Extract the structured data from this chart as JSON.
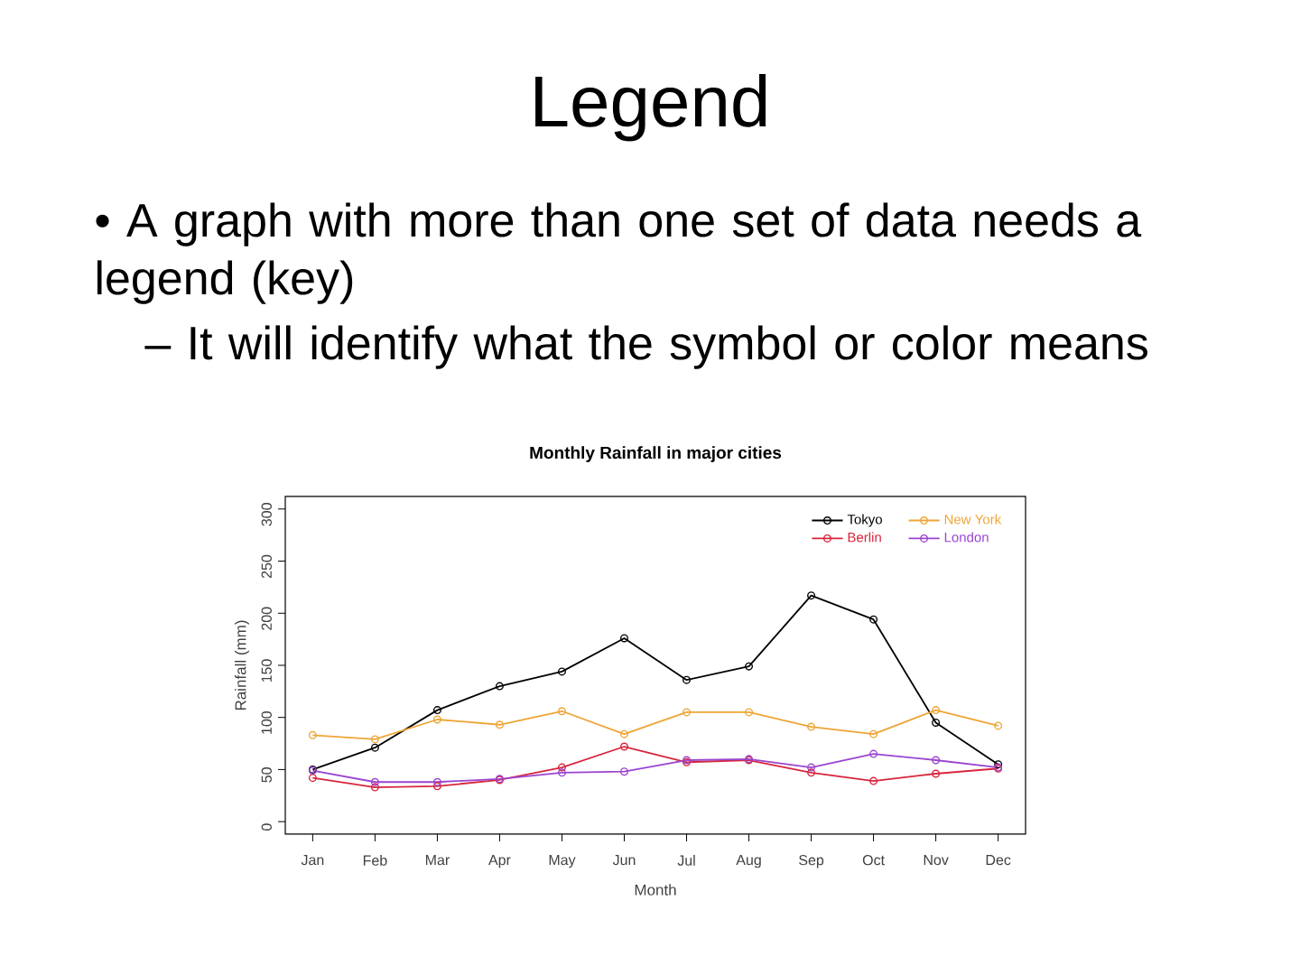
{
  "chart_data": {
    "type": "line",
    "title": "Monthly Rainfall in major cities",
    "xlabel": "Month",
    "ylabel": "Rainfall (mm)",
    "annotations": [
      "Legend",
      "• A graph with more than one set of data needs a legend (key)",
      "– It will identify what the symbol or color means"
    ],
    "categories": [
      "Jan",
      "Feb",
      "Mar",
      "Apr",
      "May",
      "Jun",
      "Jul",
      "Aug",
      "Sep",
      "Oct",
      "Nov",
      "Dec"
    ],
    "series": [
      {
        "name": "Tokyo",
        "color": "#000000",
        "values": [
          50,
          71,
          107,
          130,
          144,
          176,
          136,
          149,
          217,
          194,
          95,
          55
        ]
      },
      {
        "name": "New York",
        "color": "#eea536",
        "values": [
          83,
          79,
          98,
          93,
          106,
          84,
          105,
          105,
          91,
          84,
          107,
          92
        ]
      },
      {
        "name": "Berlin",
        "color": "#d7263d",
        "values": [
          42,
          33,
          34,
          40,
          52,
          72,
          57,
          59,
          47,
          39,
          46,
          51
        ]
      },
      {
        "name": "London",
        "color": "#9b45d0",
        "values": [
          49,
          38,
          38,
          41,
          47,
          48,
          59,
          60,
          52,
          65,
          59,
          52
        ]
      }
    ],
    "ylim": [
      -12,
      312
    ],
    "yticks": [
      0,
      50,
      100,
      150,
      200,
      250,
      300
    ],
    "legend": "top right",
    "marker": "circle",
    "line_style": "solid"
  }
}
